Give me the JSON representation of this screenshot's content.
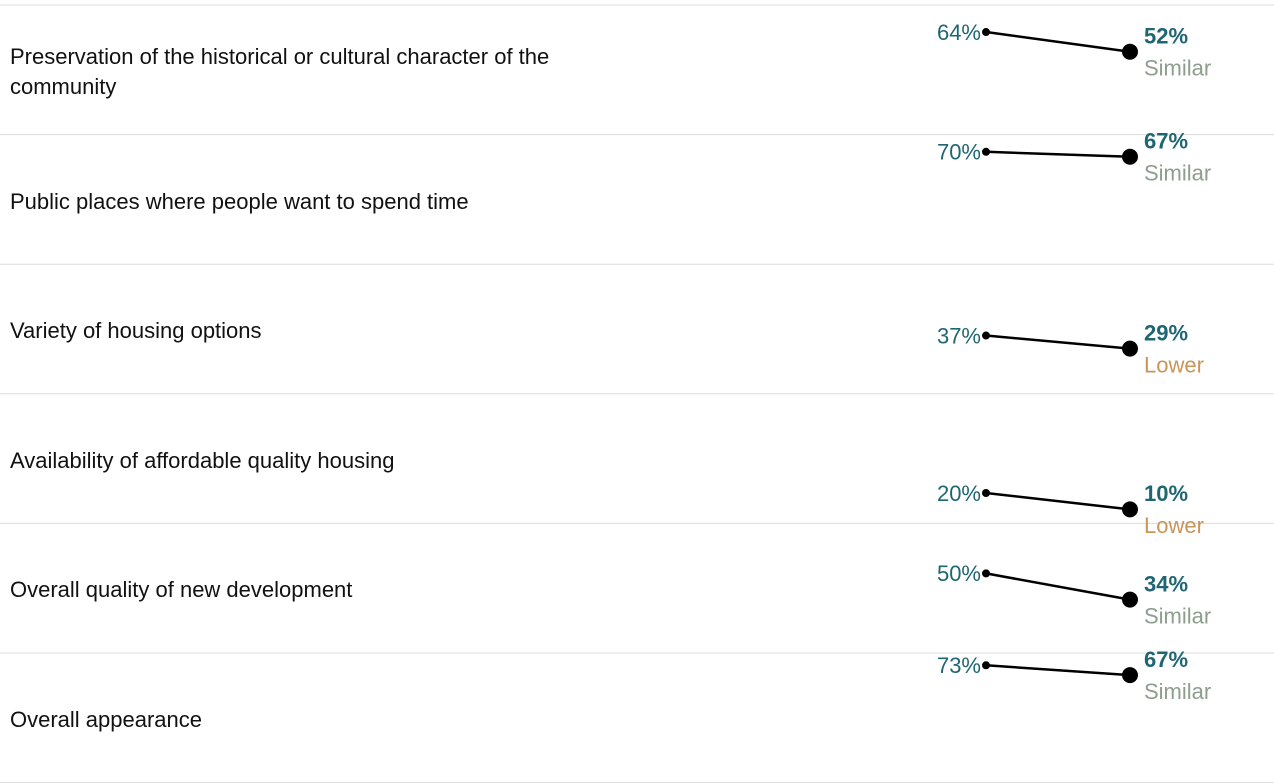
{
  "chart_data": {
    "type": "slope",
    "categories": [
      "Preservation of the historical or cultural character of the community",
      "Public places where people want to spend time",
      "Variety of housing options",
      "Availability of affordable quality housing",
      "Overall quality of new development",
      "Overall appearance"
    ],
    "series": [
      {
        "color": "#1f6673",
        "values": [
          64,
          70,
          37,
          20,
          50,
          73
        ],
        "value_labels": [
          "64%",
          "70%",
          "37%",
          "20%",
          "50%",
          "73%"
        ]
      },
      {
        "color": "#1f6673",
        "values": [
          52,
          67,
          29,
          10,
          34,
          67
        ],
        "value_labels": [
          "52%",
          "67%",
          "29%",
          "10%",
          "34%",
          "67%"
        ]
      }
    ],
    "comparisons": [
      "Similar",
      "Similar",
      "Lower",
      "Lower",
      "Similar",
      "Similar"
    ],
    "comparison_colors": {
      "Similar": "#8d9e8d",
      "Lower": "#c8955a"
    },
    "ylim": [
      0,
      100
    ]
  }
}
